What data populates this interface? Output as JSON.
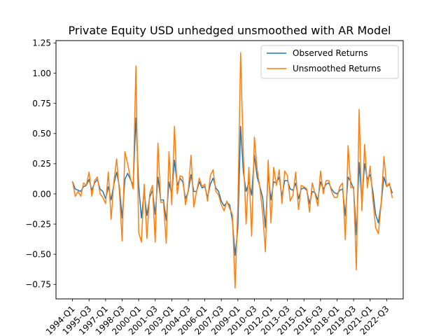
{
  "chart_data": {
    "type": "line",
    "title": "Private Equity USD unhedged unsmoothed with AR Model",
    "xlabel": "",
    "ylabel": "",
    "ylim": [
      -0.87,
      1.27
    ],
    "xlim": [
      -6.0,
      120.0
    ],
    "yticks": [
      -0.75,
      -0.5,
      -0.25,
      0.0,
      0.25,
      0.5,
      0.75,
      1.0,
      1.25
    ],
    "ytick_labels": [
      "−0.75",
      "−0.50",
      "−0.25",
      "0.00",
      "0.25",
      "0.50",
      "0.75",
      "1.00",
      "1.25"
    ],
    "xtick_positions": [
      0,
      6,
      12,
      18,
      24,
      30,
      36,
      42,
      48,
      54,
      60,
      66,
      72,
      78,
      84,
      90,
      96,
      102,
      108,
      114
    ],
    "xtick_labels": [
      "1994-Q1",
      "1995-Q3",
      "1997-Q1",
      "1998-Q3",
      "2000-Q1",
      "2001-Q3",
      "2003-Q1",
      "2004-Q3",
      "2006-Q1",
      "2007-Q3",
      "2009-Q1",
      "2010-Q3",
      "2012-Q1",
      "2013-Q3",
      "2015-Q1",
      "2016-Q3",
      "2018-Q1",
      "2019-Q3",
      "2021-Q1",
      "2022-Q3"
    ],
    "legend": {
      "position": "upper-right"
    },
    "grid": false,
    "series": [
      {
        "name": "Observed Returns",
        "color": "#1f77b4",
        "values": [
          0.1,
          0.04,
          0.03,
          0.02,
          0.06,
          0.07,
          0.12,
          0.03,
          0.09,
          0.12,
          0.04,
          0.02,
          -0.04,
          0.06,
          -0.05,
          0.08,
          0.18,
          0.06,
          -0.2,
          0.12,
          0.17,
          0.12,
          0.07,
          0.63,
          0.07,
          -0.2,
          0.02,
          -0.18,
          -0.03,
          0.03,
          -0.17,
          0.14,
          -0.05,
          -0.05,
          -0.22,
          0.1,
          -0.01,
          0.28,
          0.07,
          0.13,
          0.1,
          -0.04,
          0.02,
          0.16,
          0.02,
          0.02,
          0.1,
          0.05,
          0.06,
          -0.03,
          0.08,
          0.13,
          0.05,
          0.02,
          -0.06,
          -0.1,
          -0.07,
          -0.09,
          -0.22,
          -0.51,
          -0.28,
          0.56,
          0.18,
          0.02,
          0.1,
          -0.01,
          0.32,
          0.14,
          0.06,
          -0.03,
          -0.28,
          0.17,
          -0.05,
          0.1,
          0.09,
          0.14,
          -0.02,
          0.11,
          0.11,
          0.04,
          0.03,
          0.09,
          -0.04,
          0.04,
          0.05,
          0.03,
          -0.08,
          0.02,
          0.01,
          -0.05,
          0.1,
          0.04,
          0.08,
          0.09,
          0.04,
          0.01,
          0.0,
          0.03,
          0.04,
          -0.18,
          0.14,
          0.1,
          0.04,
          -0.34,
          0.26,
          -0.06,
          0.25,
          0.12,
          0.16,
          0.02,
          -0.17,
          -0.24,
          -0.08,
          0.14,
          0.06,
          0.08,
          0.01
        ]
      },
      {
        "name": "Unsmoothed Returns",
        "color": "#ff7f0e",
        "values": [
          0.1,
          -0.02,
          0.02,
          -0.02,
          0.09,
          0.07,
          0.18,
          -0.02,
          0.11,
          0.14,
          0.0,
          -0.03,
          -0.08,
          0.18,
          -0.21,
          0.1,
          0.29,
          0.02,
          -0.39,
          0.35,
          0.25,
          0.13,
          0.04,
          1.06,
          -0.32,
          -0.4,
          0.08,
          -0.37,
          0.0,
          0.07,
          -0.4,
          0.42,
          -0.07,
          -0.07,
          -0.41,
          0.35,
          -0.09,
          0.56,
          0.0,
          0.15,
          0.14,
          -0.09,
          0.03,
          0.32,
          -0.11,
          0.02,
          0.13,
          0.06,
          0.08,
          -0.06,
          0.15,
          0.2,
          0.02,
          -0.01,
          -0.09,
          -0.14,
          -0.06,
          -0.12,
          -0.17,
          -0.78,
          -0.1,
          1.17,
          0.32,
          -0.25,
          0.22,
          -0.35,
          0.47,
          0.2,
          0.05,
          -0.16,
          -0.48,
          0.28,
          -0.24,
          0.22,
          0.07,
          0.2,
          -0.08,
          0.19,
          0.15,
          -0.06,
          -0.01,
          0.18,
          -0.13,
          0.07,
          0.06,
          0.04,
          -0.15,
          0.09,
          0.0,
          -0.1,
          0.19,
          0.0,
          0.11,
          0.11,
          0.02,
          -0.03,
          -0.03,
          0.06,
          0.09,
          -0.38,
          0.4,
          0.05,
          0.06,
          -0.63,
          0.7,
          -0.14,
          0.41,
          0.05,
          0.23,
          -0.05,
          -0.28,
          -0.33,
          -0.08,
          0.31,
          0.06,
          0.09,
          -0.03
        ]
      }
    ]
  }
}
